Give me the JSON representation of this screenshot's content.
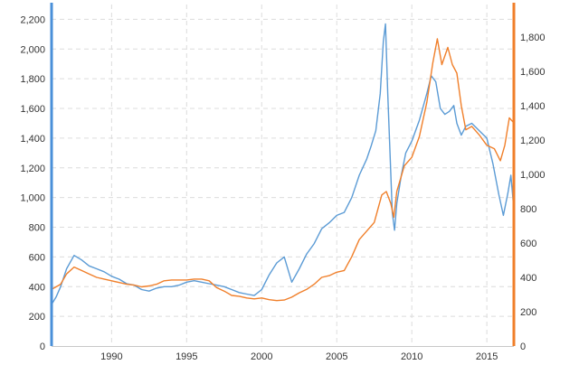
{
  "chart_data": {
    "type": "line",
    "title": "",
    "xlabel": "",
    "ylabel_left": "",
    "ylabel_right": "",
    "xlim": [
      1986.0,
      2016.8
    ],
    "x_ticks": [
      1990,
      1995,
      2000,
      2005,
      2010,
      2015
    ],
    "x_tick_labels": [
      "1990",
      "1995",
      "2000",
      "2005",
      "2010",
      "2015"
    ],
    "left_axis": {
      "color": "#4a90d9",
      "ylim": [
        0,
        2300
      ],
      "ticks": [
        0,
        200,
        400,
        600,
        800,
        1000,
        1200,
        1400,
        1600,
        1800,
        2000,
        2200
      ],
      "tick_labels": [
        "0",
        "200",
        "400",
        "600",
        "800",
        "1,000",
        "1,200",
        "1,400",
        "1,600",
        "1,800",
        "2,000",
        "2,200"
      ]
    },
    "right_axis": {
      "color": "#f07f2a",
      "ylim": [
        0,
        1990
      ],
      "ticks": [
        0,
        200,
        400,
        600,
        800,
        1000,
        1200,
        1400,
        1600,
        1800
      ],
      "tick_labels": [
        "0",
        "200",
        "400",
        "600",
        "800",
        "1,000",
        "1,200",
        "1,400",
        "1,600",
        "1,800"
      ]
    },
    "grid": true,
    "legend": "none",
    "series": [
      {
        "axis": "left",
        "color": "#5b9bd5",
        "x": [
          1986.0,
          1986.3,
          1986.6,
          1987.0,
          1987.5,
          1988.0,
          1988.5,
          1989.0,
          1989.5,
          1990.0,
          1990.5,
          1991.0,
          1991.5,
          1992.0,
          1992.5,
          1993.0,
          1993.5,
          1994.0,
          1994.5,
          1995.0,
          1995.5,
          1996.0,
          1996.5,
          1997.0,
          1997.5,
          1998.0,
          1998.5,
          1999.0,
          1999.5,
          2000.0,
          2000.5,
          2001.0,
          2001.5,
          2002.0,
          2002.5,
          2003.0,
          2003.5,
          2004.0,
          2004.5,
          2005.0,
          2005.5,
          2006.0,
          2006.5,
          2007.0,
          2007.3,
          2007.6,
          2007.9,
          2008.1,
          2008.25,
          2008.4,
          2008.55,
          2008.7,
          2008.85,
          2009.0,
          2009.3,
          2009.6,
          2010.0,
          2010.5,
          2011.0,
          2011.3,
          2011.6,
          2011.9,
          2012.2,
          2012.5,
          2012.8,
          2013.0,
          2013.3,
          2013.6,
          2014.0,
          2014.5,
          2015.0,
          2015.4,
          2015.8,
          2016.1,
          2016.4,
          2016.6,
          2016.8
        ],
        "values": [
          280,
          330,
          400,
          520,
          610,
          580,
          540,
          520,
          500,
          470,
          450,
          420,
          410,
          380,
          370,
          390,
          400,
          400,
          410,
          430,
          440,
          430,
          420,
          410,
          400,
          380,
          360,
          350,
          340,
          380,
          480,
          560,
          600,
          430,
          520,
          620,
          690,
          790,
          830,
          880,
          900,
          1000,
          1150,
          1260,
          1350,
          1450,
          1700,
          2050,
          2170,
          1700,
          1300,
          900,
          780,
          960,
          1150,
          1300,
          1380,
          1520,
          1700,
          1820,
          1780,
          1600,
          1560,
          1580,
          1620,
          1500,
          1420,
          1480,
          1500,
          1450,
          1400,
          1230,
          1020,
          880,
          1030,
          1150,
          920
        ]
      },
      {
        "axis": "right",
        "color": "#f07f2a",
        "x": [
          1986.0,
          1986.3,
          1986.6,
          1987.0,
          1987.5,
          1988.0,
          1988.5,
          1989.0,
          1989.5,
          1990.0,
          1990.5,
          1991.0,
          1991.5,
          1992.0,
          1992.5,
          1993.0,
          1993.5,
          1994.0,
          1994.5,
          1995.0,
          1995.5,
          1996.0,
          1996.5,
          1997.0,
          1997.5,
          1998.0,
          1998.5,
          1999.0,
          1999.5,
          2000.0,
          2000.5,
          2001.0,
          2001.5,
          2002.0,
          2002.5,
          2003.0,
          2003.5,
          2004.0,
          2004.5,
          2005.0,
          2005.5,
          2006.0,
          2006.5,
          2007.0,
          2007.5,
          2008.0,
          2008.3,
          2008.6,
          2008.8,
          2009.0,
          2009.5,
          2010.0,
          2010.5,
          2011.0,
          2011.4,
          2011.7,
          2012.0,
          2012.4,
          2012.7,
          2013.0,
          2013.3,
          2013.6,
          2014.0,
          2014.5,
          2015.0,
          2015.5,
          2015.9,
          2016.2,
          2016.5,
          2016.8
        ],
        "values": [
          330,
          345,
          360,
          420,
          460,
          440,
          420,
          400,
          390,
          380,
          370,
          360,
          355,
          345,
          350,
          360,
          380,
          385,
          385,
          385,
          390,
          390,
          380,
          340,
          320,
          295,
          290,
          280,
          275,
          280,
          270,
          265,
          268,
          285,
          310,
          330,
          360,
          400,
          410,
          430,
          440,
          520,
          620,
          670,
          720,
          880,
          900,
          830,
          750,
          900,
          1050,
          1100,
          1220,
          1420,
          1650,
          1790,
          1640,
          1740,
          1640,
          1590,
          1400,
          1260,
          1280,
          1230,
          1170,
          1150,
          1080,
          1170,
          1330,
          1300
        ]
      }
    ]
  }
}
